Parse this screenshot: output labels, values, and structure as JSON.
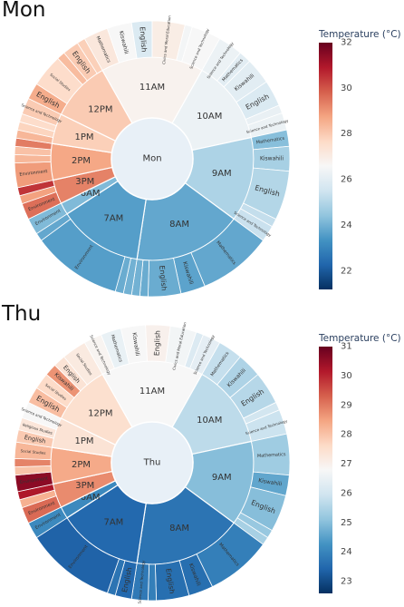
{
  "chart_data": [
    {
      "type": "sunburst",
      "title": "Mon",
      "center_label": "Mon",
      "colorbar": {
        "title": "Temperature (°C)",
        "min": 21.2,
        "max": 32,
        "ticks": [
          22,
          24,
          26,
          28,
          30,
          32
        ]
      },
      "hours": [
        {
          "label": "11AM",
          "size": 17,
          "temp": 26.8,
          "subjects": [
            {
              "label": "Mathematics",
              "size": 3,
              "temp": 27.2
            },
            {
              "label": "Kiswahili",
              "size": 3,
              "temp": 26.6
            },
            {
              "label": "English",
              "size": 2.5,
              "temp": 25.8
            },
            {
              "label": "Civics and Moral Education",
              "size": 4,
              "temp": 27.0
            },
            {
              "label": "Social Studies",
              "size": 0.9,
              "temp": 26.5
            },
            {
              "label": "Science and Technology",
              "size": 3.6,
              "temp": 26.6
            }
          ]
        },
        {
          "label": "10AM",
          "size": 14,
          "temp": 26.3,
          "subjects": [
            {
              "label": "Science and Technology",
              "size": 3,
              "temp": 26.3
            },
            {
              "label": "Mathematics",
              "size": 1.5,
              "temp": 26.0
            },
            {
              "label": "Kiswahili",
              "size": 3.2,
              "temp": 26.0
            },
            {
              "label": "English",
              "size": 3.2,
              "temp": 25.8
            },
            {
              "label": "Social Studies",
              "size": 1,
              "temp": 26.2
            },
            {
              "label": "Science and Technology",
              "size": 2.1,
              "temp": 26.3
            }
          ]
        },
        {
          "label": "9AM",
          "size": 14,
          "temp": 24.9,
          "subjects": [
            {
              "label": "Mathematics",
              "size": 2,
              "temp": 24.3
            },
            {
              "label": "Kiswahili",
              "size": 3,
              "temp": 24.8
            },
            {
              "label": "English",
              "size": 6,
              "temp": 25.0
            },
            {
              "label": "Social Studies",
              "size": 1,
              "temp": 25.3
            },
            {
              "label": "Science and Technology",
              "size": 2,
              "temp": 25.4
            }
          ]
        },
        {
          "label": "8AM",
          "size": 18,
          "temp": 23.8,
          "subjects": [
            {
              "label": "Mathematics",
              "size": 9,
              "temp": 23.8
            },
            {
              "label": "Kiswahili",
              "size": 3,
              "temp": 23.7
            },
            {
              "label": "English",
              "size": 4,
              "temp": 23.9
            },
            {
              "label": "Social Studies",
              "size": 1,
              "temp": 23.9
            },
            {
              "label": "Science and Technology",
              "size": 1,
              "temp": 24.0
            }
          ]
        },
        {
          "label": "7AM",
          "size": 14,
          "temp": 23.6,
          "subjects": [
            {
              "label": "Science and Technology",
              "size": 1,
              "temp": 24.0
            },
            {
              "label": "Mathematics",
              "size": 1,
              "temp": 23.9
            },
            {
              "label": "Environment",
              "size": 11,
              "temp": 23.6
            },
            {
              "label": "Social Studies",
              "size": 1,
              "temp": 23.8
            }
          ]
        },
        {
          "label": "6AM",
          "size": 2,
          "temp": 24.2,
          "subjects": [
            {
              "label": "Environment",
              "size": 2,
              "temp": 24.2
            }
          ]
        },
        {
          "label": "3PM",
          "size": 4,
          "temp": 29.3,
          "subjects": [
            {
              "label": "Environment",
              "size": 2,
              "temp": 29.6
            },
            {
              "label": "Social Studies",
              "size": 1,
              "temp": 28.8
            },
            {
              "label": "Mathematics",
              "size": 1,
              "temp": 30.5
            }
          ]
        },
        {
          "label": "2PM",
          "size": 6,
          "temp": 28.7,
          "subjects": [
            {
              "label": "Environment",
              "size": 3,
              "temp": 28.9
            },
            {
              "label": "Social Studies",
              "size": 1,
              "temp": 28.4
            },
            {
              "label": "Science and Technology",
              "size": 1,
              "temp": 28.2
            },
            {
              "label": "Kiswahili",
              "size": 1,
              "temp": 29.4
            }
          ]
        },
        {
          "label": "1PM",
          "size": 5,
          "temp": 27.9,
          "subjects": [
            {
              "label": "English",
              "size": 1,
              "temp": 28.4
            },
            {
              "label": "Social Studies",
              "size": 1,
              "temp": 27.8
            },
            {
              "label": "Mathematics",
              "size": 1,
              "temp": 27.6
            },
            {
              "label": "Science and Technology",
              "size": 2,
              "temp": 28.0
            }
          ]
        },
        {
          "label": "12PM",
          "size": 10,
          "temp": 28.0,
          "subjects": [
            {
              "label": "English",
              "size": 2,
              "temp": 28.6
            },
            {
              "label": "Social Studies",
              "size": 4,
              "temp": 27.6
            },
            {
              "label": "Mathematics",
              "size": 1,
              "temp": 28.3
            },
            {
              "label": "English",
              "size": 2,
              "temp": 28.0
            },
            {
              "label": "Social Studies",
              "size": 1,
              "temp": 27.9
            }
          ]
        }
      ]
    },
    {
      "type": "sunburst",
      "title": "Thu",
      "center_label": "Thu",
      "colorbar": {
        "title": "Temperature (°C)",
        "min": 22.6,
        "max": 31,
        "ticks": [
          23,
          24,
          25,
          26,
          27,
          28,
          29,
          30,
          31
        ]
      },
      "hours": [
        {
          "label": "11AM",
          "size": 17,
          "temp": 26.8,
          "subjects": [
            {
              "label": "Science and Technology",
              "size": 2.2,
              "temp": 26.9
            },
            {
              "label": "Mathematics",
              "size": 2.5,
              "temp": 26.5
            },
            {
              "label": "Kiswahili",
              "size": 3,
              "temp": 26.8
            },
            {
              "label": "English",
              "size": 3,
              "temp": 27.0
            },
            {
              "label": "Civics and Moral Education",
              "size": 3.2,
              "temp": 26.7
            },
            {
              "label": "Social Studies",
              "size": 0.9,
              "temp": 26.2
            },
            {
              "label": "Science and Technology",
              "size": 2.2,
              "temp": 26.4
            }
          ]
        },
        {
          "label": "10AM",
          "size": 14,
          "temp": 25.7,
          "subjects": [
            {
              "label": "Mathematics",
              "size": 3,
              "temp": 25.8
            },
            {
              "label": "Kiswahili",
              "size": 3,
              "temp": 25.5
            },
            {
              "label": "English",
              "size": 4,
              "temp": 25.6
            },
            {
              "label": "Social Studies",
              "size": 1,
              "temp": 26.0
            },
            {
              "label": "Science and Technology",
              "size": 3,
              "temp": 25.9
            }
          ]
        },
        {
          "label": "9AM",
          "size": 14,
          "temp": 25.0,
          "subjects": [
            {
              "label": "Mathematics",
              "size": 5,
              "temp": 25.3
            },
            {
              "label": "Kiswahili",
              "size": 2.5,
              "temp": 24.6
            },
            {
              "label": "English",
              "size": 4.5,
              "temp": 25.0
            },
            {
              "label": "Social Studies",
              "size": 1,
              "temp": 25.2
            },
            {
              "label": "Science and Technology",
              "size": 1,
              "temp": 25.4
            }
          ]
        },
        {
          "label": "8AM",
          "size": 18,
          "temp": 23.7,
          "subjects": [
            {
              "label": "Mathematics",
              "size": 8,
              "temp": 23.9
            },
            {
              "label": "Kiswahili",
              "size": 3,
              "temp": 23.6
            },
            {
              "label": "English",
              "size": 4,
              "temp": 23.6
            },
            {
              "label": "Social Studies",
              "size": 1,
              "temp": 23.9
            },
            {
              "label": "Science and Technology",
              "size": 2,
              "temp": 23.8
            }
          ]
        },
        {
          "label": "7AM",
          "size": 14,
          "temp": 23.5,
          "subjects": [
            {
              "label": "English",
              "size": 2,
              "temp": 23.5
            },
            {
              "label": "Science and Technology",
              "size": 1,
              "temp": 23.7
            },
            {
              "label": "Environment",
              "size": 11,
              "temp": 23.4
            }
          ]
        },
        {
          "label": "6AM",
          "size": 2,
          "temp": 24.1,
          "subjects": [
            {
              "label": "Environment",
              "size": 2,
              "temp": 24.1
            }
          ]
        },
        {
          "label": "3PM",
          "size": 4,
          "temp": 28.8,
          "subjects": [
            {
              "label": "Environment",
              "size": 2,
              "temp": 29.2
            },
            {
              "label": "Social Studies",
              "size": 1,
              "temp": 28.3
            },
            {
              "label": "Mathematics",
              "size": 1,
              "temp": 30.2
            }
          ]
        },
        {
          "label": "2PM",
          "size": 6,
          "temp": 28.4,
          "subjects": [
            {
              "label": "Environment",
              "size": 2,
              "temp": 30.6
            },
            {
              "label": "Science and Technology",
              "size": 1,
              "temp": 28.0
            },
            {
              "label": "Kiswahili",
              "size": 1,
              "temp": 28.9
            },
            {
              "label": "Social Studies",
              "size": 2,
              "temp": 28.2
            }
          ]
        },
        {
          "label": "1PM",
          "size": 5,
          "temp": 27.4,
          "subjects": [
            {
              "label": "English",
              "size": 1.5,
              "temp": 27.9
            },
            {
              "label": "Religious Studies",
              "size": 1.5,
              "temp": 27.3
            },
            {
              "label": "Science and Technology",
              "size": 2,
              "temp": 26.8
            }
          ]
        },
        {
          "label": "12PM",
          "size": 10,
          "temp": 27.5,
          "subjects": [
            {
              "label": "English",
              "size": 2,
              "temp": 28.1
            },
            {
              "label": "Social Studies",
              "size": 2,
              "temp": 27.6
            },
            {
              "label": "Kiswahili",
              "size": 1.5,
              "temp": 28.7
            },
            {
              "label": "English",
              "size": 1.5,
              "temp": 27.4
            },
            {
              "label": "Social Studies",
              "size": 3,
              "temp": 27.2
            }
          ]
        }
      ]
    }
  ]
}
